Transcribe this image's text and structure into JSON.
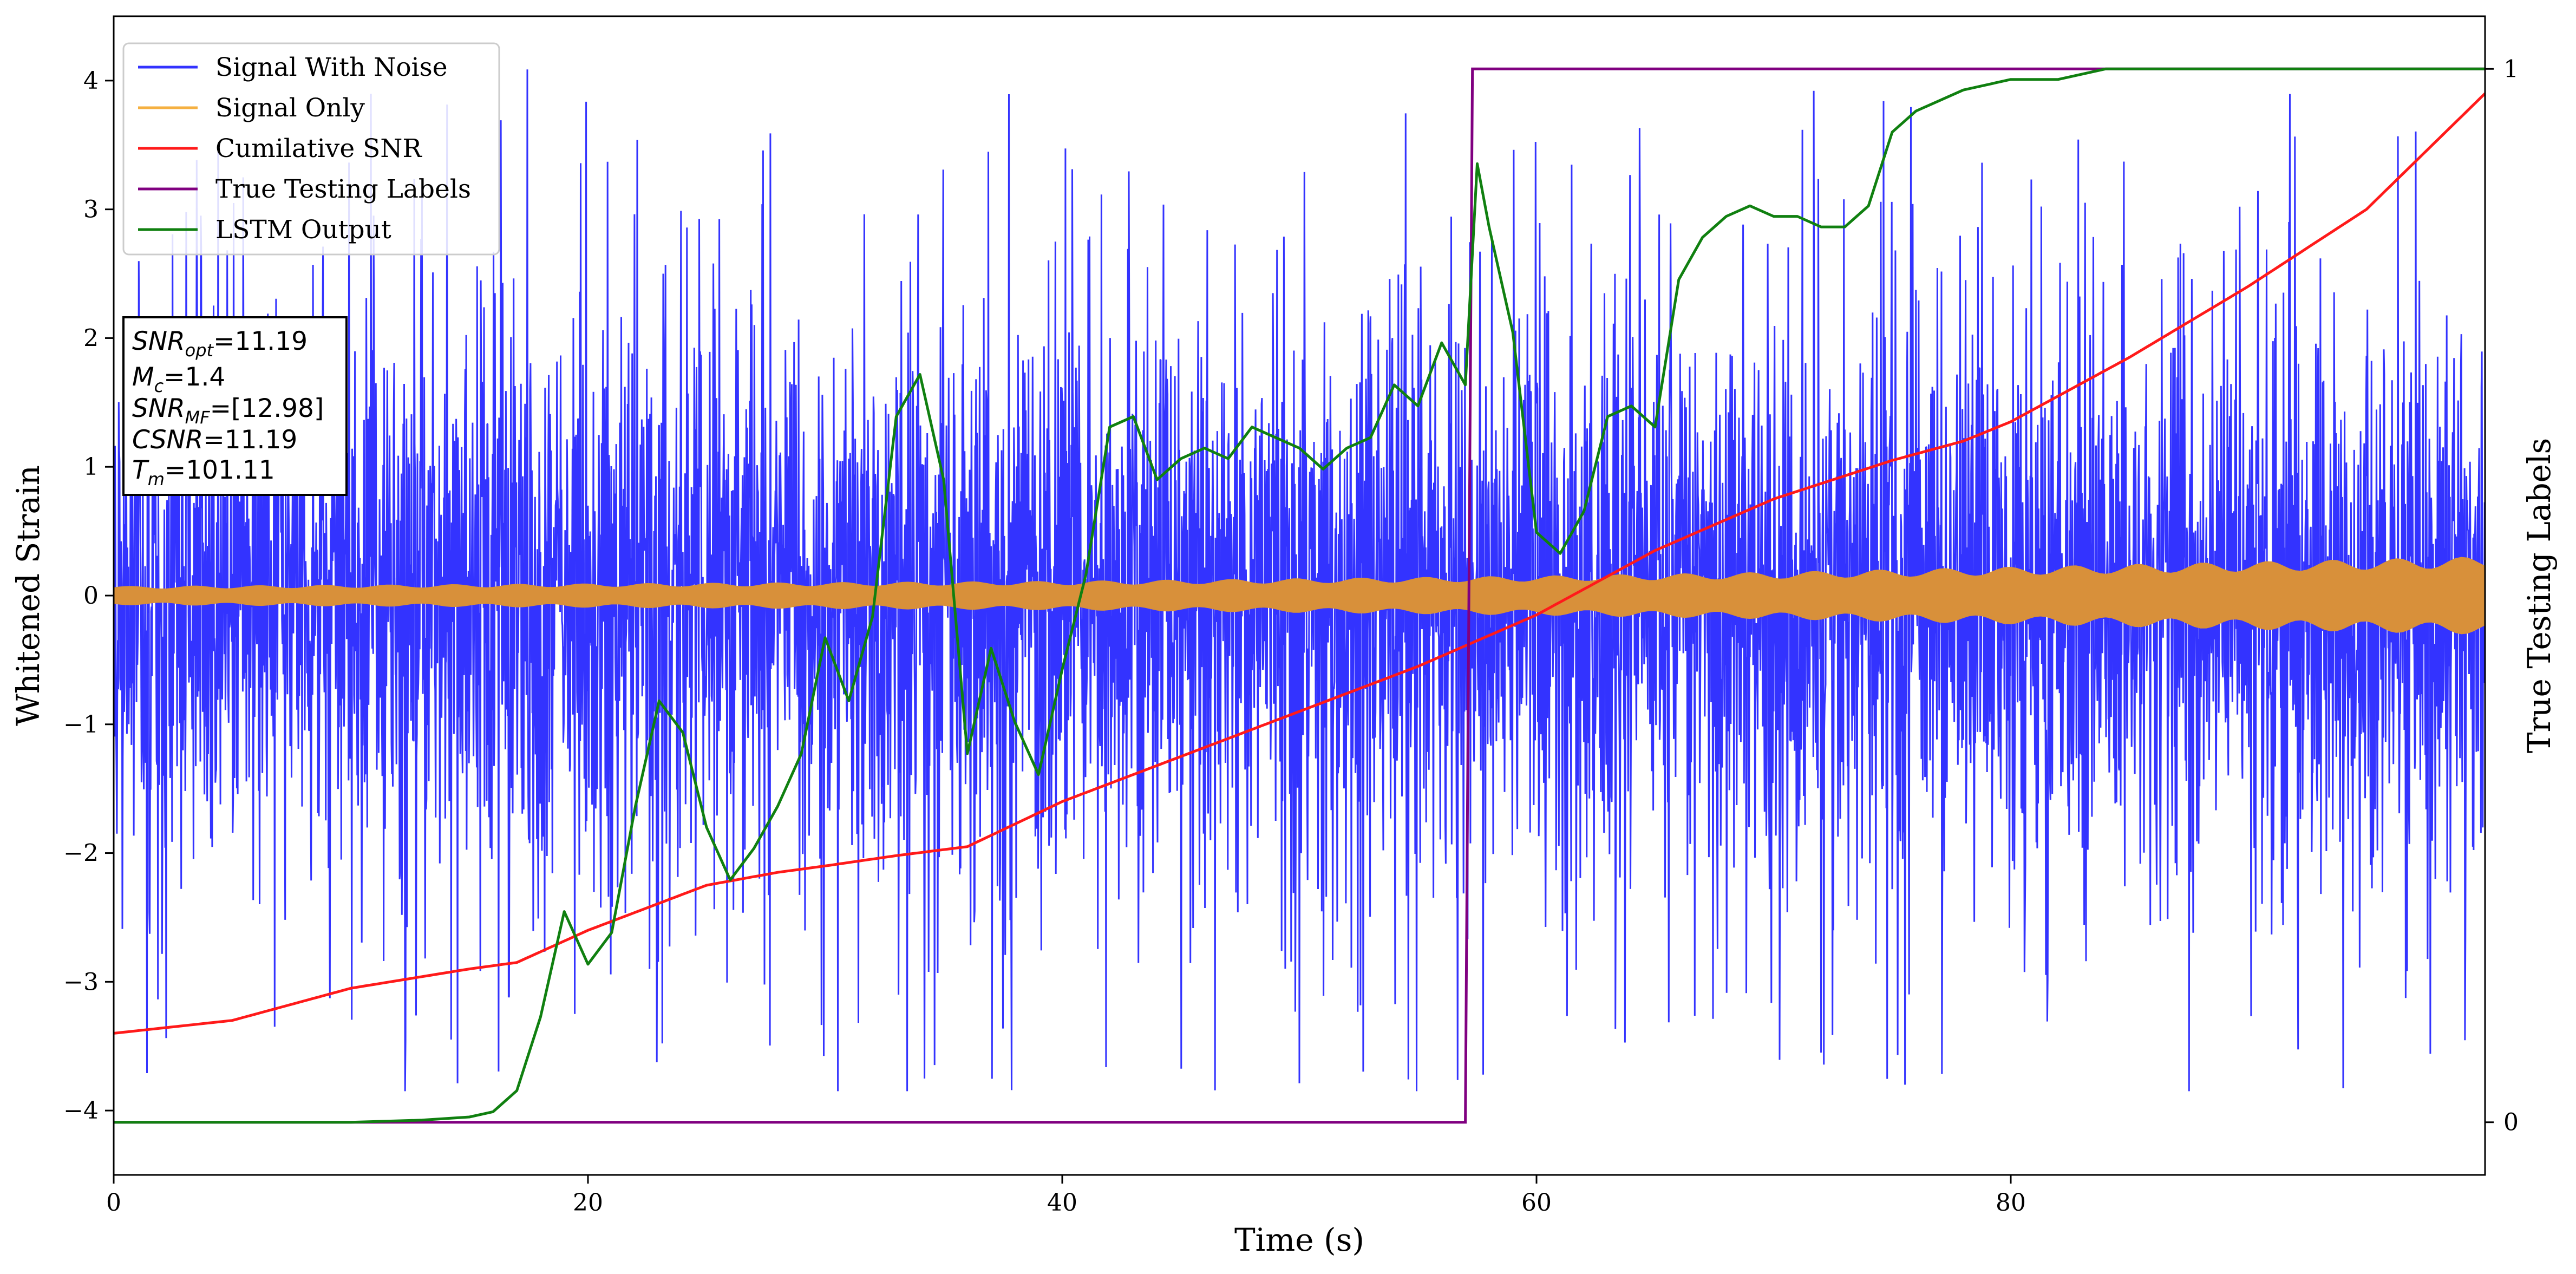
{
  "chart_data": {
    "type": "line",
    "xlabel": "Time (s)",
    "ylabel": "Whitened Strain",
    "y2label": "True Testing Labels",
    "xlim": [
      0,
      100
    ],
    "ylim": [
      -4.5,
      4.5
    ],
    "y2lim": [
      -0.05,
      1.05
    ],
    "x_ticks": [
      0,
      20,
      40,
      60,
      80
    ],
    "x_tick_labels": [
      "0",
      "20",
      "40",
      "60",
      "80"
    ],
    "y_ticks": [
      -4,
      -3,
      -2,
      -1,
      0,
      1,
      2,
      3,
      4
    ],
    "y_tick_labels": [
      "−4",
      "−3",
      "−2",
      "−1",
      "0",
      "1",
      "2",
      "3",
      "4"
    ],
    "y2_ticks": [
      0,
      1
    ],
    "y2_tick_labels": [
      "0",
      "1"
    ],
    "grid": false,
    "legend_position": "top-left",
    "colors": {
      "noise": "#3333ff",
      "signal": "#d8903a",
      "csnr": "#ff1a1a",
      "labels": "#800080",
      "lstm": "#108010"
    },
    "series": [
      {
        "name": "Signal With Noise",
        "axis": "left",
        "style": "dense-noise",
        "x_range": [
          0,
          100
        ],
        "core_sigma": 1.0,
        "peak_range": [
          -3.85,
          4.1
        ]
      },
      {
        "name": "Signal Only",
        "axis": "left",
        "style": "envelope",
        "x": [
          0,
          10,
          20,
          30,
          40,
          50,
          60,
          70,
          80,
          90,
          100
        ],
        "amplitude": [
          0.07,
          0.08,
          0.09,
          0.1,
          0.11,
          0.13,
          0.15,
          0.18,
          0.22,
          0.26,
          0.3
        ]
      },
      {
        "name": "Cumilative SNR",
        "axis": "left",
        "style": "line",
        "x": [
          0,
          5,
          10,
          15,
          17,
          20,
          25,
          28,
          30,
          33,
          36,
          40,
          45,
          50,
          55,
          60,
          65,
          70,
          75,
          78,
          80,
          85,
          90,
          95,
          100
        ],
        "y": [
          -3.4,
          -3.3,
          -3.05,
          -2.9,
          -2.85,
          -2.6,
          -2.25,
          -2.15,
          -2.1,
          -2.02,
          -1.95,
          -1.6,
          -1.25,
          -0.9,
          -0.55,
          -0.15,
          0.35,
          0.75,
          1.05,
          1.2,
          1.35,
          1.85,
          2.4,
          3.0,
          3.9
        ]
      },
      {
        "name": "True Testing Labels",
        "axis": "right",
        "style": "step",
        "x": [
          0,
          57,
          57.3,
          100
        ],
        "y": [
          0,
          0,
          1,
          1
        ]
      },
      {
        "name": "LSTM Output",
        "axis": "right",
        "style": "line",
        "x": [
          0,
          10,
          13,
          15,
          16,
          17,
          18,
          19,
          20,
          21,
          22,
          23,
          24,
          25,
          26,
          27,
          28,
          29,
          30,
          31,
          32,
          33,
          34,
          35,
          36,
          37,
          38,
          39,
          40,
          41,
          42,
          43,
          44,
          45,
          46,
          47,
          48,
          49,
          50,
          51,
          52,
          53,
          54,
          55,
          56,
          57,
          57.5,
          58,
          59,
          60,
          61,
          62,
          63,
          64,
          65,
          66,
          67,
          68,
          69,
          70,
          71,
          72,
          73,
          74,
          75,
          76,
          78,
          80,
          82,
          84,
          86,
          90,
          95,
          100
        ],
        "y": [
          0,
          0,
          0.002,
          0.005,
          0.01,
          0.03,
          0.1,
          0.2,
          0.15,
          0.18,
          0.3,
          0.4,
          0.37,
          0.28,
          0.23,
          0.26,
          0.3,
          0.35,
          0.46,
          0.4,
          0.48,
          0.67,
          0.71,
          0.61,
          0.35,
          0.45,
          0.38,
          0.33,
          0.43,
          0.52,
          0.66,
          0.67,
          0.61,
          0.63,
          0.64,
          0.63,
          0.66,
          0.65,
          0.64,
          0.62,
          0.64,
          0.65,
          0.7,
          0.68,
          0.74,
          0.7,
          0.91,
          0.85,
          0.75,
          0.56,
          0.54,
          0.58,
          0.67,
          0.68,
          0.66,
          0.8,
          0.84,
          0.86,
          0.87,
          0.86,
          0.86,
          0.85,
          0.85,
          0.87,
          0.94,
          0.96,
          0.98,
          0.99,
          0.99,
          1.0,
          1.0,
          1.0,
          1.0,
          1.0
        ]
      }
    ],
    "annotation_box": {
      "position": "upper-left",
      "lines": [
        {
          "label": "SNR",
          "sub": "opt",
          "value": "=11.19"
        },
        {
          "label": "M",
          "sub": "c",
          "value": "=1.4"
        },
        {
          "label": "SNR",
          "sub": "MF",
          "value": "=[12.98]"
        },
        {
          "label": "CSNR",
          "sub": "",
          "value": "=11.19"
        },
        {
          "label": "T",
          "sub": "m",
          "value": "=101.11"
        }
      ]
    }
  }
}
